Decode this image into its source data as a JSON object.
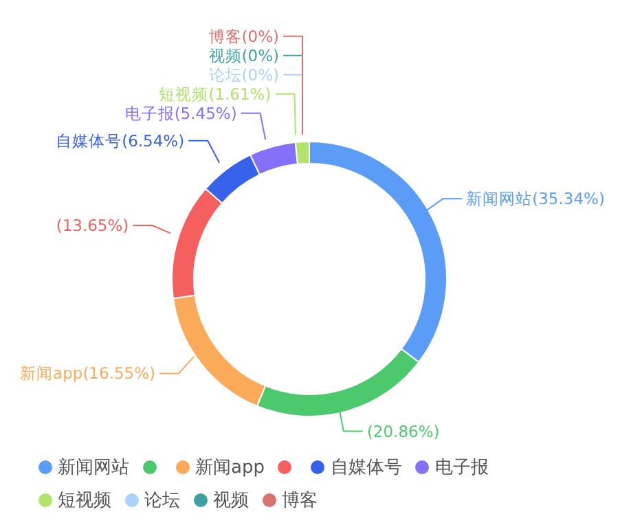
{
  "chart_data": {
    "type": "donut",
    "categories": [
      "新闻网站",
      null,
      "新闻app",
      null,
      "自媒体号",
      "电子报",
      "短视频",
      "论坛",
      "视频",
      "博客"
    ],
    "values": [
      35.34,
      20.86,
      16.55,
      13.65,
      6.54,
      5.45,
      1.61,
      0,
      0,
      0
    ],
    "colors": [
      "#5b9cf8",
      "#4cc96d",
      "#fbaa5a",
      "#f5605f",
      "#3661eb",
      "#8470fb",
      "#b0e36a",
      "#a9d3f7",
      "#3fa2a2",
      "#d8726c"
    ],
    "value_labels": [
      "新闻网站(35.34%)",
      "(20.86%)",
      "新闻app(16.55%)",
      "(13.65%)",
      "自媒体号(6.54%)",
      "电子报(5.45%)",
      "短视频(1.61%)",
      "论坛(0%)",
      "视频(0%)",
      "博客(0%)"
    ],
    "legend": "bottom"
  }
}
